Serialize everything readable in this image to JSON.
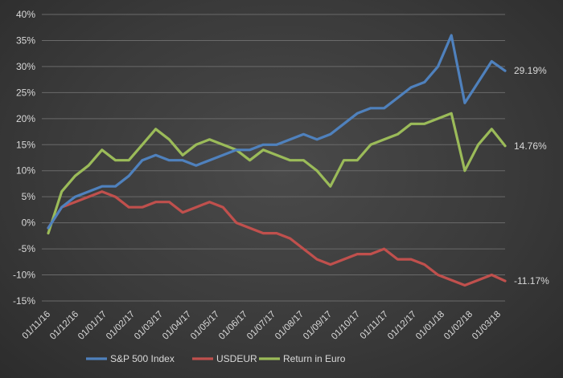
{
  "chart_data": {
    "type": "line",
    "title": "",
    "xlabel": "",
    "ylabel": "",
    "ylim": [
      -15,
      40
    ],
    "yticks": [
      "40%",
      "35%",
      "30%",
      "25%",
      "20%",
      "15%",
      "10%",
      "5%",
      "0%",
      "-5%",
      "-10%",
      "-15%"
    ],
    "x_tick_labels": [
      "01/11/16",
      "01/12/16",
      "01/01/17",
      "01/02/17",
      "01/03/17",
      "01/04/17",
      "01/05/17",
      "01/06/17",
      "01/07/17",
      "01/08/17",
      "01/09/17",
      "01/10/17",
      "01/11/17",
      "01/12/17",
      "01/01/18",
      "01/02/18",
      "01/03/18"
    ],
    "grid": "horizontal",
    "legend_position": "bottom",
    "x": [
      "01/11/16",
      "15/11/16",
      "01/12/16",
      "15/12/16",
      "01/01/17",
      "15/01/17",
      "01/02/17",
      "15/02/17",
      "01/03/17",
      "15/03/17",
      "01/04/17",
      "15/04/17",
      "01/05/17",
      "15/05/17",
      "01/06/17",
      "15/06/17",
      "01/07/17",
      "15/07/17",
      "01/08/17",
      "15/08/17",
      "01/09/17",
      "15/09/17",
      "01/10/17",
      "15/10/17",
      "01/11/17",
      "15/11/17",
      "01/12/17",
      "15/12/17",
      "01/01/18",
      "15/01/18",
      "26/01/18",
      "08/02/18",
      "15/02/18",
      "01/03/18",
      "15/03/18"
    ],
    "series": [
      {
        "name": "S&P 500 Index",
        "color": "#4f81bd",
        "end_label": "29.19%",
        "values": [
          -1,
          3,
          5,
          6,
          7,
          7,
          9,
          12,
          13,
          12,
          12,
          11,
          12,
          13,
          14,
          14,
          15,
          15,
          16,
          17,
          16,
          17,
          19,
          21,
          22,
          22,
          24,
          26,
          27,
          30,
          36,
          23,
          27,
          31,
          29.19
        ]
      },
      {
        "name": "USDEUR",
        "color": "#c0504d",
        "end_label": "-11.17%",
        "values": [
          -1,
          3,
          4,
          5,
          6,
          5,
          3,
          3,
          4,
          4,
          2,
          3,
          4,
          3,
          0,
          -1,
          -2,
          -2,
          -3,
          -5,
          -7,
          -8,
          -7,
          -6,
          -6,
          -5,
          -7,
          -7,
          -8,
          -10,
          -11,
          -12,
          -11,
          -10,
          -11.17
        ]
      },
      {
        "name": "Return in Euro",
        "color": "#9bbb59",
        "end_label": "14.76%",
        "values": [
          -2,
          6,
          9,
          11,
          14,
          12,
          12,
          15,
          18,
          16,
          13,
          15,
          16,
          15,
          14,
          12,
          14,
          13,
          12,
          12,
          10,
          7,
          12,
          12,
          15,
          16,
          17,
          19,
          19,
          20,
          21,
          10,
          15,
          18,
          14.76
        ]
      }
    ]
  }
}
